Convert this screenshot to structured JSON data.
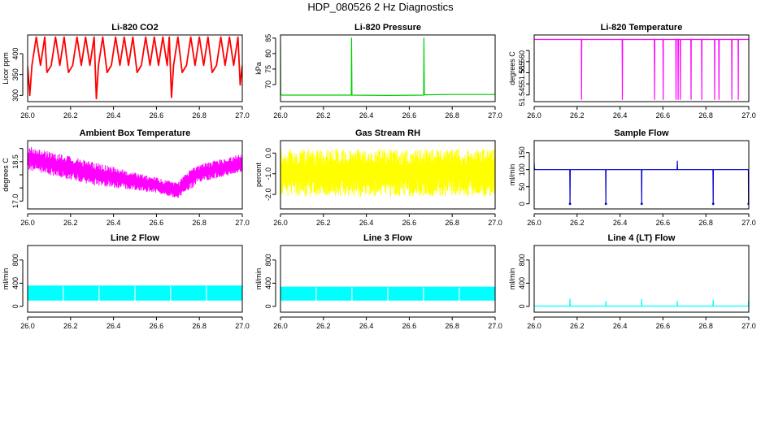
{
  "page": {
    "title": "HDP_080526  2 Hz Diagnostics"
  },
  "chart_data": [
    {
      "type": "line",
      "title": "Li-820 CO2",
      "xlabel": "",
      "ylabel": "Licor ppm",
      "xlim": [
        26.0,
        27.0
      ],
      "ylim": [
        285,
        445
      ],
      "xticks": [
        26.0,
        26.2,
        26.4,
        26.6,
        26.8,
        27.0
      ],
      "xtick_labels": [
        "26.0",
        "26.2",
        "26.4",
        "26.6",
        "26.8",
        "27.0"
      ],
      "yticks": [
        300,
        350,
        400
      ],
      "ytick_labels": [
        "300",
        "350",
        "400"
      ],
      "color": "#ff0000",
      "series": [
        {
          "x": [
            26.0,
            26.01,
            26.02,
            26.04,
            26.06,
            26.08,
            26.09,
            26.11,
            26.13,
            26.15,
            26.17,
            26.19,
            26.21,
            26.23,
            26.25,
            26.27,
            26.29,
            26.31,
            26.32,
            26.33,
            26.35,
            26.37,
            26.39,
            26.41,
            26.43,
            26.45,
            26.47,
            26.49,
            26.51,
            26.53,
            26.55,
            26.57,
            26.59,
            26.61,
            26.63,
            26.65,
            26.66,
            26.67,
            26.68,
            26.7,
            26.72,
            26.74,
            26.76,
            26.78,
            26.8,
            26.82,
            26.84,
            26.86,
            26.88,
            26.9,
            26.92,
            26.94,
            26.96,
            26.98,
            26.99,
            27.0
          ],
          "y": [
            370,
            300,
            372,
            440,
            372,
            440,
            355,
            372,
            440,
            372,
            440,
            355,
            372,
            440,
            372,
            440,
            372,
            440,
            292,
            372,
            440,
            355,
            372,
            440,
            372,
            440,
            372,
            440,
            355,
            372,
            440,
            372,
            440,
            372,
            440,
            372,
            440,
            295,
            372,
            440,
            355,
            372,
            440,
            372,
            440,
            372,
            440,
            355,
            372,
            440,
            372,
            440,
            372,
            440,
            325,
            372
          ]
        }
      ]
    },
    {
      "type": "line",
      "title": "Li-820 Pressure",
      "xlabel": "",
      "ylabel": "kPa",
      "xlim": [
        26.0,
        27.0
      ],
      "ylim": [
        64.5,
        86
      ],
      "xticks": [
        26.0,
        26.2,
        26.4,
        26.6,
        26.8,
        27.0
      ],
      "xtick_labels": [
        "26.0",
        "26.2",
        "26.4",
        "26.6",
        "26.8",
        "27.0"
      ],
      "yticks": [
        70,
        75,
        80,
        85
      ],
      "ytick_labels": [
        "70",
        "75",
        "80",
        "85"
      ],
      "color": "#00cc00",
      "series": [
        {
          "x": [
            26.0,
            26.001,
            26.003,
            26.006,
            26.33,
            26.331,
            26.333,
            26.5,
            26.667,
            26.668,
            26.67,
            26.8,
            27.0,
            27.001
          ],
          "y": [
            84,
            67,
            66.7,
            66.6,
            66.6,
            85,
            66.6,
            66.5,
            66.6,
            85,
            66.7,
            66.8,
            66.8,
            85
          ]
        }
      ]
    },
    {
      "type": "line",
      "title": "Li-820 Temperature",
      "xlabel": "",
      "ylabel": "degrees C",
      "xlim": [
        26.0,
        27.0
      ],
      "ylim": [
        51.542,
        51.572
      ],
      "xticks": [
        26.0,
        26.2,
        26.4,
        26.6,
        26.8,
        27.0
      ],
      "xtick_labels": [
        "26.0",
        "26.2",
        "26.4",
        "26.6",
        "26.8",
        "27.0"
      ],
      "yticks": [
        51.545,
        51.55,
        51.555,
        51.56,
        51.565
      ],
      "ytick_labels": [
        "51.545",
        "",
        "51.555",
        "51.560",
        ""
      ],
      "color": "#ff00ff",
      "series": [
        {
          "x": [
            26.0,
            26.22,
            26.221,
            26.222,
            26.41,
            26.411,
            26.412,
            26.56,
            26.561,
            26.562,
            26.6,
            26.601,
            26.602,
            26.66,
            26.661,
            26.662,
            26.67,
            26.671,
            26.672,
            26.68,
            26.681,
            26.682,
            26.73,
            26.731,
            26.732,
            26.78,
            26.781,
            26.782,
            26.84,
            26.841,
            26.842,
            26.86,
            26.861,
            26.862,
            26.92,
            26.921,
            26.922,
            26.95,
            26.951,
            26.952,
            27.0
          ],
          "y": [
            51.57,
            51.57,
            51.543,
            51.57,
            51.57,
            51.543,
            51.57,
            51.57,
            51.543,
            51.57,
            51.57,
            51.543,
            51.57,
            51.57,
            51.543,
            51.57,
            51.57,
            51.543,
            51.57,
            51.57,
            51.543,
            51.57,
            51.57,
            51.543,
            51.57,
            51.57,
            51.543,
            51.57,
            51.57,
            51.543,
            51.57,
            51.57,
            51.543,
            51.57,
            51.57,
            51.543,
            51.57,
            51.57,
            51.543,
            51.57,
            51.57
          ]
        }
      ]
    },
    {
      "type": "area",
      "title": "Ambient Box Temperature",
      "xlabel": "",
      "ylabel": "degrees C",
      "xlim": [
        26.0,
        27.0
      ],
      "ylim": [
        16.7,
        19.3
      ],
      "xticks": [
        26.0,
        26.2,
        26.4,
        26.6,
        26.8,
        27.0
      ],
      "xtick_labels": [
        "26.0",
        "26.2",
        "26.4",
        "26.6",
        "26.8",
        "27.0"
      ],
      "yticks": [
        17.0,
        17.5,
        18.0,
        18.5,
        19.0
      ],
      "ytick_labels": [
        "17.0",
        "",
        "",
        "18.5",
        ""
      ],
      "color": "#ff00ff",
      "series": [
        {
          "x": [
            26.0,
            26.05,
            26.1,
            26.2,
            26.3,
            26.4,
            26.5,
            26.6,
            26.65,
            26.7,
            26.75,
            26.8,
            26.9,
            27.0
          ],
          "low": [
            18.2,
            18.1,
            18.0,
            17.8,
            17.6,
            17.5,
            17.4,
            17.3,
            17.2,
            17.1,
            17.4,
            17.7,
            17.9,
            18.1
          ],
          "high": [
            19.1,
            19.0,
            18.9,
            18.7,
            18.5,
            18.3,
            18.1,
            17.9,
            17.8,
            17.7,
            18.2,
            18.4,
            18.6,
            18.8
          ]
        }
      ]
    },
    {
      "type": "area",
      "title": "Gas Stream RH",
      "xlabel": "",
      "ylabel": "percent",
      "xlim": [
        26.0,
        27.0
      ],
      "ylim": [
        -2.7,
        0.6
      ],
      "xticks": [
        26.0,
        26.2,
        26.4,
        26.6,
        26.8,
        27.0
      ],
      "xtick_labels": [
        "26.0",
        "26.2",
        "26.4",
        "26.6",
        "26.8",
        "27.0"
      ],
      "yticks": [
        -2.0,
        -1.0,
        0.0
      ],
      "ytick_labels": [
        "-2.0",
        "-1.0",
        "0.0"
      ],
      "color": "#ffff00",
      "series": [
        {
          "x": [
            26.0,
            27.0
          ],
          "low": [
            -2.1,
            -2.1
          ],
          "high": [
            0.2,
            0.2
          ]
        }
      ]
    },
    {
      "type": "line",
      "title": "Sample Flow",
      "xlabel": "",
      "ylabel": "ml/min",
      "xlim": [
        26.0,
        27.0
      ],
      "ylim": [
        -15,
        185
      ],
      "xticks": [
        26.0,
        26.2,
        26.4,
        26.6,
        26.8,
        27.0
      ],
      "xtick_labels": [
        "26.0",
        "26.2",
        "26.4",
        "26.6",
        "26.8",
        "27.0"
      ],
      "yticks": [
        0,
        50,
        100,
        150
      ],
      "ytick_labels": [
        "0",
        "50",
        "100",
        "150"
      ],
      "color": "#0000cc",
      "series": [
        {
          "x": [
            26.0,
            26.001,
            26.005,
            26.166,
            26.167,
            26.168,
            26.333,
            26.334,
            26.335,
            26.5,
            26.501,
            26.502,
            26.666,
            26.667,
            26.668,
            26.833,
            26.834,
            26.835,
            26.998,
            26.999,
            27.0
          ],
          "y": [
            120,
            103,
            100,
            100,
            0,
            100,
            100,
            0,
            100,
            100,
            0,
            100,
            100,
            125,
            100,
            100,
            0,
            100,
            100,
            0,
            100
          ]
        }
      ]
    },
    {
      "type": "area",
      "title": "Line 2 Flow",
      "xlabel": "",
      "ylabel": "ml/min",
      "xlim": [
        26.0,
        27.0
      ],
      "ylim": [
        -100,
        1050
      ],
      "xticks": [
        26.0,
        26.2,
        26.4,
        26.6,
        26.8,
        27.0
      ],
      "xtick_labels": [
        "26.0",
        "26.2",
        "26.4",
        "26.6",
        "26.8",
        "27.0"
      ],
      "yticks": [
        0,
        400,
        800
      ],
      "ytick_labels": [
        "0",
        "400",
        "800"
      ],
      "color": "#00ffff",
      "series": [
        {
          "x": [
            26.0,
            27.0
          ],
          "low": [
            100,
            100
          ],
          "high": [
            360,
            360
          ]
        }
      ]
    },
    {
      "type": "area",
      "title": "Line 3 Flow",
      "xlabel": "",
      "ylabel": "ml/min",
      "xlim": [
        26.0,
        27.0
      ],
      "ylim": [
        -100,
        1050
      ],
      "xticks": [
        26.0,
        26.2,
        26.4,
        26.6,
        26.8,
        27.0
      ],
      "xtick_labels": [
        "26.0",
        "26.2",
        "26.4",
        "26.6",
        "26.8",
        "27.0"
      ],
      "yticks": [
        0,
        400,
        800
      ],
      "ytick_labels": [
        "0",
        "400",
        "800"
      ],
      "color": "#00ffff",
      "series": [
        {
          "x": [
            26.0,
            27.0
          ],
          "low": [
            100,
            100
          ],
          "high": [
            340,
            340
          ]
        }
      ]
    },
    {
      "type": "line",
      "title": "Line 4 (LT) Flow",
      "xlabel": "",
      "ylabel": "ml/min",
      "xlim": [
        26.0,
        27.0
      ],
      "ylim": [
        -100,
        1050
      ],
      "xticks": [
        26.0,
        26.2,
        26.4,
        26.6,
        26.8,
        27.0
      ],
      "xtick_labels": [
        "26.0",
        "26.2",
        "26.4",
        "26.6",
        "26.8",
        "27.0"
      ],
      "yticks": [
        0,
        400,
        800
      ],
      "ytick_labels": [
        "0",
        "400",
        "800"
      ],
      "color": "#00ffff",
      "series": [
        {
          "x": [
            26.0,
            26.166,
            26.167,
            26.168,
            26.333,
            26.334,
            26.335,
            26.5,
            26.501,
            26.502,
            26.666,
            26.667,
            26.668,
            26.833,
            26.834,
            26.835,
            26.998,
            26.999,
            27.0
          ],
          "y": [
            5,
            5,
            130,
            5,
            5,
            90,
            5,
            5,
            125,
            5,
            5,
            85,
            5,
            5,
            110,
            5,
            5,
            90,
            5
          ]
        }
      ]
    }
  ]
}
